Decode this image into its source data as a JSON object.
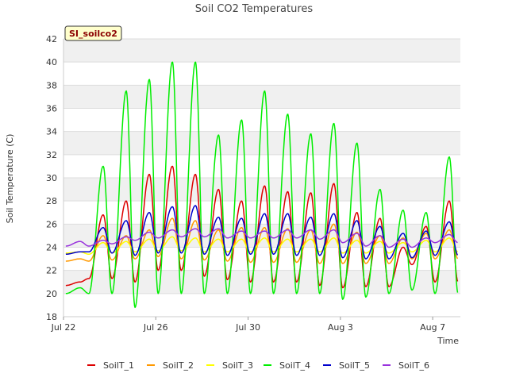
{
  "chart_data": {
    "type": "line",
    "title": "Soil CO2 Temperatures",
    "xlabel": "Time",
    "ylabel": "Soil Temperature (C)",
    "badge": "SI_soilco2",
    "xlim": [
      0,
      17.2
    ],
    "ylim": [
      18,
      42
    ],
    "x_ticks": [
      {
        "value": 0,
        "label": "Jul 22"
      },
      {
        "value": 4,
        "label": "Jul 26"
      },
      {
        "value": 8,
        "label": "Jul 30"
      },
      {
        "value": 12,
        "label": "Aug 3"
      },
      {
        "value": 16,
        "label": "Aug 7"
      }
    ],
    "y_ticks": [
      18,
      20,
      22,
      24,
      26,
      28,
      30,
      32,
      34,
      36,
      38,
      40,
      42
    ],
    "grid": true,
    "legend_position": "bottom",
    "series": [
      {
        "name": "SoilT_1",
        "color": "#dd0000",
        "max": [
          21.0,
          26.8,
          28.0,
          30.3,
          31.0,
          30.3,
          29.0,
          28.0,
          29.3,
          28.8,
          28.7,
          29.5,
          27.0,
          26.5,
          24.0,
          25.8,
          28.0
        ],
        "min": [
          20.7,
          21.3,
          21.3,
          21.0,
          22.0,
          22.0,
          21.5,
          21.2,
          21.0,
          21.0,
          21.0,
          20.7,
          20.5,
          20.6,
          20.6,
          22.5,
          21.0
        ]
      },
      {
        "name": "SoilT_2",
        "color": "#ff9900",
        "max": [
          23.0,
          25.0,
          25.0,
          25.5,
          26.5,
          26.3,
          25.5,
          25.7,
          25.7,
          25.6,
          25.5,
          26.0,
          25.3,
          25.0,
          24.8,
          25.2,
          25.5
        ],
        "min": [
          22.8,
          22.8,
          22.9,
          23.0,
          23.2,
          23.0,
          22.9,
          22.8,
          22.7,
          22.7,
          22.7,
          22.6,
          22.6,
          22.6,
          22.6,
          23.0,
          23.0
        ]
      },
      {
        "name": "SoilT_3",
        "color": "#ffff00",
        "max": [
          23.6,
          24.4,
          24.5,
          24.7,
          24.9,
          24.8,
          24.7,
          24.7,
          24.8,
          24.7,
          24.7,
          24.8,
          24.6,
          24.5,
          24.4,
          24.6,
          24.8
        ],
        "min": [
          23.5,
          23.4,
          23.5,
          23.6,
          23.7,
          23.7,
          23.6,
          23.6,
          23.6,
          23.6,
          23.6,
          23.6,
          23.5,
          23.5,
          23.5,
          23.6,
          23.6
        ]
      },
      {
        "name": "SoilT_4",
        "color": "#00ee00",
        "max": [
          20.5,
          31.0,
          37.5,
          38.5,
          40.0,
          40.0,
          33.7,
          35.0,
          37.5,
          35.5,
          33.8,
          34.7,
          33.0,
          29.0,
          27.2,
          27.0,
          31.8
        ],
        "min": [
          20.0,
          20.0,
          20.0,
          18.8,
          20.0,
          20.0,
          20.0,
          20.0,
          20.0,
          20.0,
          20.0,
          20.0,
          19.5,
          19.7,
          20.0,
          20.3,
          20.0
        ]
      },
      {
        "name": "SoilT_5",
        "color": "#0000cc",
        "max": [
          23.6,
          25.7,
          26.3,
          27.0,
          27.5,
          27.6,
          26.6,
          26.5,
          26.9,
          26.9,
          26.6,
          26.9,
          26.3,
          25.8,
          25.2,
          25.4,
          26.2
        ],
        "min": [
          23.4,
          23.6,
          23.5,
          23.3,
          23.5,
          23.5,
          23.4,
          23.3,
          23.4,
          23.4,
          23.3,
          23.3,
          23.1,
          23.0,
          23.0,
          23.1,
          23.3
        ]
      },
      {
        "name": "SoilT_6",
        "color": "#9933dd",
        "max": [
          24.5,
          24.6,
          24.9,
          25.3,
          25.5,
          25.6,
          25.6,
          25.4,
          25.4,
          25.5,
          25.5,
          25.5,
          25.2,
          25.0,
          24.7,
          24.8,
          25.1
        ],
        "min": [
          24.1,
          24.1,
          24.3,
          24.6,
          24.8,
          24.9,
          24.9,
          24.8,
          24.8,
          24.8,
          24.8,
          24.7,
          24.4,
          24.1,
          24.0,
          24.0,
          24.4
        ]
      }
    ]
  }
}
